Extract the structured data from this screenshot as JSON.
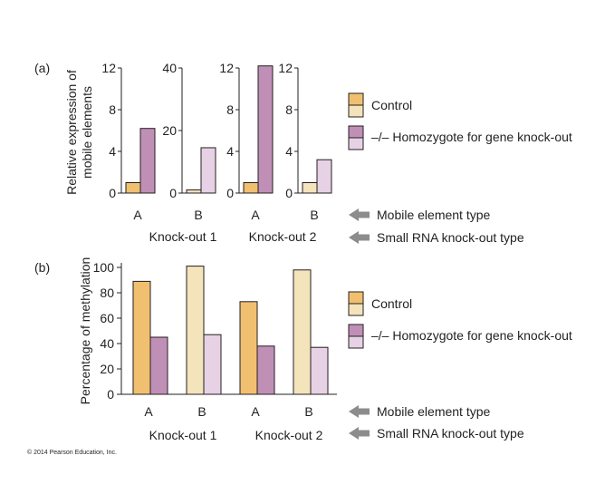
{
  "copyright": "© 2014 Pearson Education, Inc.",
  "colors": {
    "control_A": "#f0c070",
    "control_B": "#f4e4bc",
    "mutant_A": "#c08fb6",
    "mutant_B": "#e6d2e4",
    "axis": "#231f20",
    "arrow": "#8c8c8c"
  },
  "chart_data": [
    {
      "panel_label": "(a)",
      "type": "bar",
      "ylabel": "Relative expression of mobile elements",
      "groups": [
        {
          "knockout": "Knock-out 1",
          "element": "A",
          "ylim": [
            0,
            12
          ],
          "ticks": [
            0,
            4,
            8,
            12
          ],
          "tick_labels": [
            "0",
            "4",
            "8",
            "12"
          ],
          "control": 1.0,
          "homozygote": 6.2
        },
        {
          "knockout": "Knock-out 1",
          "element": "B",
          "ylim": [
            0,
            40
          ],
          "ticks": [
            0,
            20,
            40
          ],
          "tick_labels": [
            "0",
            "20",
            "40"
          ],
          "control": 1.0,
          "homozygote": 14.5
        },
        {
          "knockout": "Knock-out 2",
          "element": "A",
          "ylim": [
            0,
            12
          ],
          "ticks": [
            0,
            4,
            8,
            12
          ],
          "tick_labels": [
            "0",
            "4",
            "8",
            "12"
          ],
          "control": 1.0,
          "homozygote": 12.2
        },
        {
          "knockout": "Knock-out 2",
          "element": "B",
          "ylim": [
            0,
            12
          ],
          "ticks": [
            0,
            4,
            8,
            12
          ],
          "tick_labels": [
            "0",
            "4",
            "8",
            "12"
          ],
          "control": 1.0,
          "homozygote": 3.2
        }
      ],
      "knockout_labels": [
        "Knock-out 1",
        "Knock-out 2"
      ],
      "legend": [
        "Control",
        "–/– Homozygote for gene knock-out"
      ],
      "annotations": [
        "Mobile element type",
        "Small RNA knock-out type"
      ]
    },
    {
      "panel_label": "(b)",
      "type": "bar",
      "ylabel": "Percentage of methylation",
      "ylim": [
        0,
        100
      ],
      "ticks": [
        0,
        20,
        40,
        60,
        80,
        100
      ],
      "tick_labels": [
        "0",
        "20",
        "40",
        "60",
        "80",
        "100"
      ],
      "groups": [
        {
          "knockout": "Knock-out 1",
          "element": "A",
          "control": 89,
          "homozygote": 45
        },
        {
          "knockout": "Knock-out 1",
          "element": "B",
          "control": 101,
          "homozygote": 47
        },
        {
          "knockout": "Knock-out 2",
          "element": "A",
          "control": 73,
          "homozygote": 38
        },
        {
          "knockout": "Knock-out 2",
          "element": "B",
          "control": 98,
          "homozygote": 37
        }
      ],
      "knockout_labels": [
        "Knock-out 1",
        "Knock-out 2"
      ],
      "legend": [
        "Control",
        "–/– Homozygote for gene knock-out"
      ],
      "annotations": [
        "Mobile element type",
        "Small RNA knock-out type"
      ]
    }
  ]
}
